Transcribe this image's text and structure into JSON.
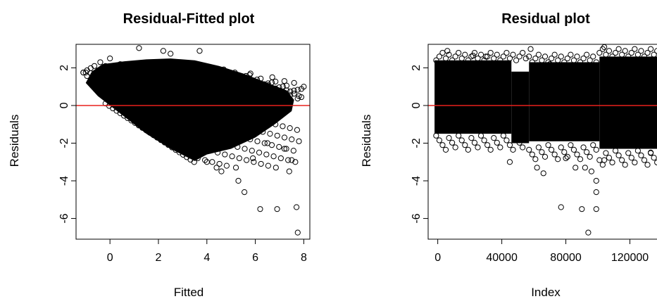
{
  "chart_data": [
    {
      "type": "scatter",
      "title": "Residual-Fitted plot",
      "xlabel": "Fitted",
      "ylabel": "Residuals",
      "xlim": [
        -1.4,
        8.25
      ],
      "ylim": [
        -7.1,
        3.25
      ],
      "x_ticks": [
        0,
        2,
        4,
        6,
        8
      ],
      "y_ticks": [
        2,
        0,
        -2,
        -4,
        -6
      ],
      "reference_line": {
        "y": 0,
        "color": "#e8201c"
      },
      "point_color": "#000000",
      "points": [
        {
          "x": 7.75,
          "y": -6.75
        },
        {
          "x": 7.7,
          "y": -5.4
        },
        {
          "x": 6.9,
          "y": -5.5
        },
        {
          "x": 6.2,
          "y": -5.5
        },
        {
          "x": 5.55,
          "y": -4.6
        },
        {
          "x": 5.3,
          "y": -4.0
        },
        {
          "x": 7.4,
          "y": -3.5
        },
        {
          "x": 6.85,
          "y": -3.3
        },
        {
          "x": 7.5,
          "y": -2.9
        },
        {
          "x": 5.9,
          "y": -2.8
        },
        {
          "x": 4.6,
          "y": -3.5
        },
        {
          "x": 4.4,
          "y": -3.3
        },
        {
          "x": 5.2,
          "y": -3.3
        },
        {
          "x": 7.2,
          "y": -2.3
        },
        {
          "x": 6.5,
          "y": -2.0
        },
        {
          "x": 4.0,
          "y": -3.0
        },
        {
          "x": 7.8,
          "y": 0.5
        },
        {
          "x": 8.0,
          "y": 1.0
        },
        {
          "x": 7.6,
          "y": 1.2
        },
        {
          "x": 7.2,
          "y": 1.3
        },
        {
          "x": 6.7,
          "y": 1.5
        },
        {
          "x": 5.8,
          "y": 1.7
        },
        {
          "x": 1.2,
          "y": 3.05
        },
        {
          "x": 3.7,
          "y": 2.9
        },
        {
          "x": 2.5,
          "y": 2.75
        },
        {
          "x": -1.0,
          "y": 1.75
        },
        {
          "x": -0.7,
          "y": 1.6
        },
        {
          "x": -0.4,
          "y": 2.3
        },
        {
          "x": 0.0,
          "y": 2.5
        },
        {
          "x": 2.2,
          "y": 2.9
        }
      ]
    },
    {
      "type": "scatter",
      "title": "Residual plot",
      "xlabel": "Index",
      "ylabel": "Residuals",
      "xlim": [
        -6000,
        140000
      ],
      "ylim": [
        -7.1,
        3.25
      ],
      "x_ticks": [
        0,
        40000,
        80000,
        120000
      ],
      "y_ticks": [
        2,
        0,
        -2,
        -4,
        -6
      ],
      "reference_line": {
        "y": 0,
        "color": "#e8201c"
      },
      "point_color": "#000000",
      "points": [
        {
          "x": 94000,
          "y": -6.75
        },
        {
          "x": 77000,
          "y": -5.4
        },
        {
          "x": 90000,
          "y": -5.5
        },
        {
          "x": 99000,
          "y": -5.5
        },
        {
          "x": 99000,
          "y": -4.6
        },
        {
          "x": 99000,
          "y": -4.0
        },
        {
          "x": 96000,
          "y": -3.5
        },
        {
          "x": 92000,
          "y": -3.3
        },
        {
          "x": 86000,
          "y": -3.3
        },
        {
          "x": 62000,
          "y": -3.3
        },
        {
          "x": 66000,
          "y": -3.6
        },
        {
          "x": 45000,
          "y": -3.0
        },
        {
          "x": 80000,
          "y": -2.8
        },
        {
          "x": 104000,
          "y": -2.9
        },
        {
          "x": 58000,
          "y": 3.0
        },
        {
          "x": 104000,
          "y": 3.1
        },
        {
          "x": 6000,
          "y": 2.9
        },
        {
          "x": 22000,
          "y": 2.65
        },
        {
          "x": 30000,
          "y": 2.6
        },
        {
          "x": 42000,
          "y": 2.0
        },
        {
          "x": 136000,
          "y": 1.5
        },
        {
          "x": 133000,
          "y": -2.5
        },
        {
          "x": 70000,
          "y": 2.2
        },
        {
          "x": 86000,
          "y": 2.0
        }
      ]
    }
  ]
}
